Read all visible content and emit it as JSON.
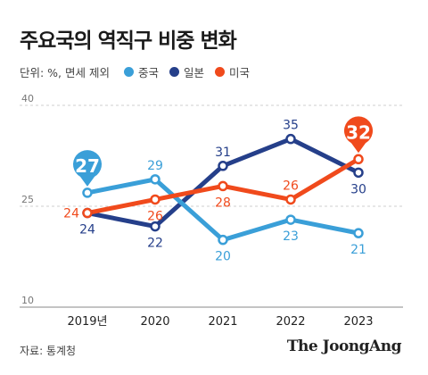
{
  "header": {
    "title": "주요국의 역직구 비중 변화",
    "unit": "단위: %, 면세 제외"
  },
  "footer": {
    "source": "자료: 통계청",
    "brand": "The JoongAng"
  },
  "chart_data": {
    "type": "line",
    "categories": [
      "2019년",
      "2020",
      "2021",
      "2022",
      "2023"
    ],
    "series": [
      {
        "name": "중국",
        "color": "#3a9fd8",
        "values": [
          27,
          29,
          20,
          23,
          21
        ]
      },
      {
        "name": "일본",
        "color": "#253f8a",
        "values": [
          24,
          22,
          31,
          35,
          30
        ]
      },
      {
        "name": "미국",
        "color": "#f04a1c",
        "values": [
          24,
          26,
          28,
          26,
          32
        ]
      }
    ],
    "ylim": [
      10,
      40
    ],
    "yticks": [
      10,
      25,
      40
    ],
    "grid": true,
    "legend": "top-left",
    "highlight": [
      {
        "series": "중국",
        "index": 0
      },
      {
        "series": "미국",
        "index": 4
      }
    ]
  }
}
